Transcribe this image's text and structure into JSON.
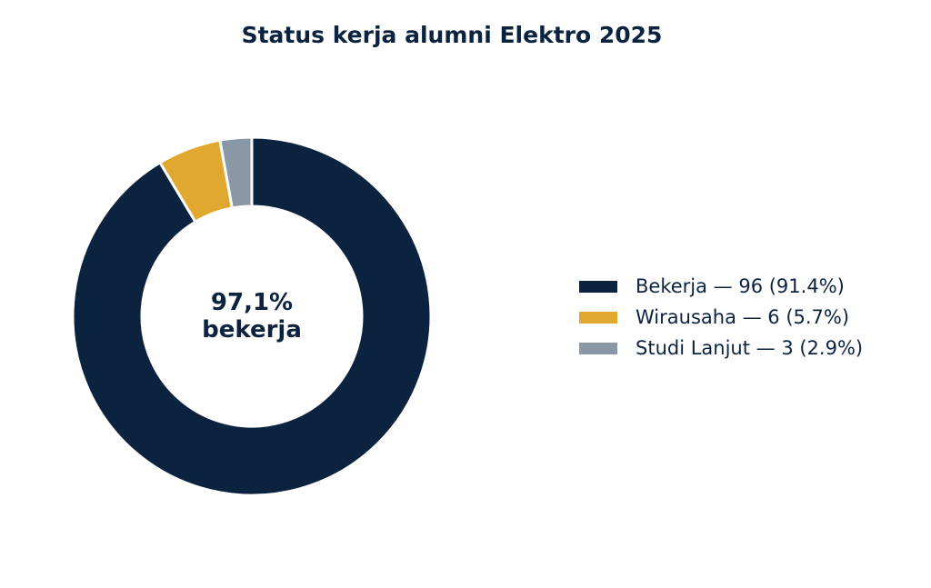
{
  "chart_data": {
    "type": "pie",
    "variant": "donut",
    "title": "Status kerja alumni Elektro 2025",
    "center_label": [
      "97,1%",
      "bekerja"
    ],
    "start_angle": "top",
    "direction": "clockwise",
    "legend_position": "right",
    "slices": [
      {
        "label": "Bekerja",
        "value": 96,
        "percent": 91.4,
        "color": "#0c2340",
        "legend_text": "Bekerja — 96 (91.4%)"
      },
      {
        "label": "Wirausaha",
        "value": 6,
        "percent": 5.7,
        "color": "#e0a82e",
        "legend_text": "Wirausaha — 6 (5.7%)"
      },
      {
        "label": "Studi Lanjut",
        "value": 3,
        "percent": 2.9,
        "color": "#8a97a6",
        "legend_text": "Studi Lanjut — 3 (2.9%)"
      }
    ]
  }
}
